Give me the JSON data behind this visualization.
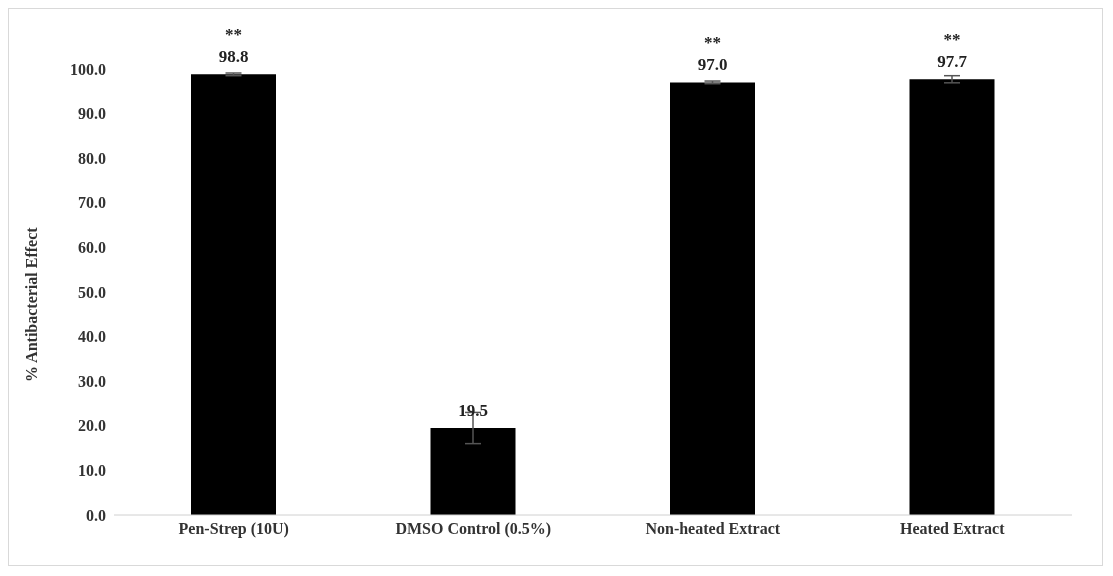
{
  "chart_data": {
    "type": "bar",
    "ylabel": "% Antibacterial Effect",
    "categories": [
      "Pen-Strep (10U)",
      "DMSO Control (0.5%)",
      "Non-heated Extract",
      "Heated Extract"
    ],
    "values": [
      98.8,
      19.5,
      97.0,
      97.7
    ],
    "errors": [
      0.3,
      3.5,
      0.3,
      0.8
    ],
    "value_labels": [
      "98.8",
      "19.5",
      "97.0",
      "97.7"
    ],
    "color": "#000000",
    "ylim": [
      0,
      100
    ],
    "yticks": [
      {
        "value": 0,
        "label": "0.0"
      },
      {
        "value": 10,
        "label": "10.0"
      },
      {
        "value": 20,
        "label": "20.0"
      },
      {
        "value": 30,
        "label": "30.0"
      },
      {
        "value": 40,
        "label": "40.0"
      },
      {
        "value": 50,
        "label": "50.0"
      },
      {
        "value": 60,
        "label": "60.0"
      },
      {
        "value": 70,
        "label": "70.0"
      },
      {
        "value": 80,
        "label": "80.0"
      },
      {
        "value": 90,
        "label": "90.0"
      },
      {
        "value": 100,
        "label": "100.0"
      }
    ],
    "annotations": [
      {
        "text": "**",
        "x": "Pen-Strep (10U)",
        "y": 98.8
      },
      {
        "text": "**",
        "x": "Non-heated Extract",
        "y": 97.0
      },
      {
        "text": "**",
        "x": "Heated Extract",
        "y": 97.7
      }
    ],
    "grid": false,
    "legend": false
  }
}
